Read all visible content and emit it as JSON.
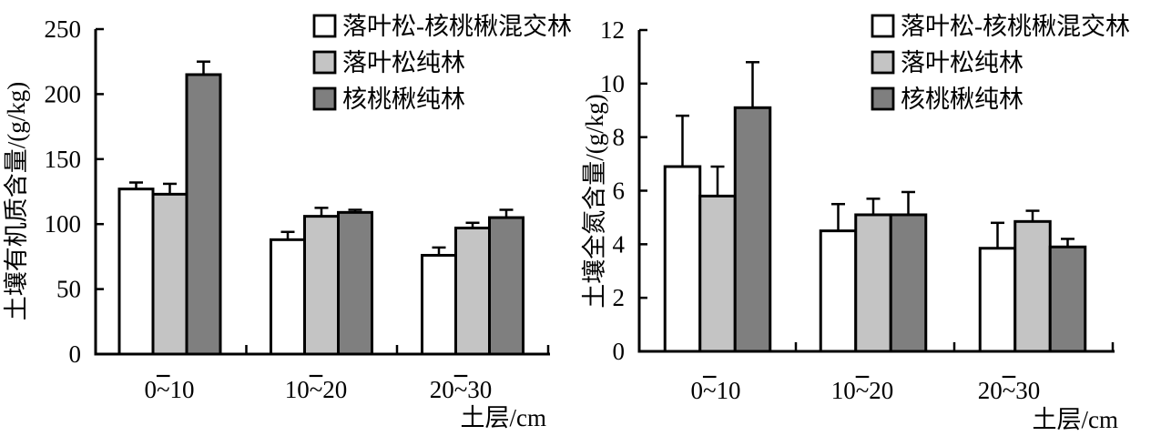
{
  "figure": {
    "background": "#ffffff",
    "outline_color": "#000000",
    "text_color": "#000000"
  },
  "legend": {
    "items": [
      {
        "label": "落叶松-核桃楸混交林",
        "fill": "#ffffff"
      },
      {
        "label": "落叶松纯林",
        "fill": "#c4c4c4"
      },
      {
        "label": "核桃楸纯林",
        "fill": "#7f7f7f"
      }
    ]
  },
  "chart_data": [
    {
      "type": "bar",
      "title": "",
      "ylabel": "土壤有机质含量/(g/kg)",
      "xlabel": "土层/cm",
      "categories": [
        "0~10",
        "10~20",
        "20~30"
      ],
      "yticks": [
        0,
        50,
        100,
        150,
        200,
        250
      ],
      "ylim": [
        0,
        250
      ],
      "grid": false,
      "legend_position": "top-right",
      "series": [
        {
          "name": "落叶松-核桃楸混交林",
          "fill": "#ffffff",
          "values": [
            127,
            88,
            76
          ],
          "errors": [
            5,
            6,
            6
          ]
        },
        {
          "name": "落叶松纯林",
          "fill": "#c4c4c4",
          "values": [
            123,
            106,
            97
          ],
          "errors": [
            8,
            6.5,
            4
          ]
        },
        {
          "name": "核桃楸纯林",
          "fill": "#7f7f7f",
          "values": [
            215,
            109,
            105
          ],
          "errors": [
            10,
            2,
            6
          ]
        }
      ]
    },
    {
      "type": "bar",
      "title": "",
      "ylabel": "土壤全氮含量/(g/kg)",
      "xlabel": "土层/cm",
      "categories": [
        "0~10",
        "10~20",
        "20~30"
      ],
      "yticks": [
        0,
        2,
        4,
        6,
        8,
        10,
        12
      ],
      "ylim": [
        0,
        12
      ],
      "grid": false,
      "legend_position": "top-right",
      "series": [
        {
          "name": "落叶松-核桃楸混交林",
          "fill": "#ffffff",
          "values": [
            6.9,
            4.5,
            3.85
          ],
          "errors": [
            1.9,
            1.0,
            0.95
          ]
        },
        {
          "name": "落叶松纯林",
          "fill": "#c4c4c4",
          "values": [
            5.8,
            5.1,
            4.85
          ],
          "errors": [
            1.1,
            0.6,
            0.4
          ]
        },
        {
          "name": "核桃楸纯林",
          "fill": "#7f7f7f",
          "values": [
            9.1,
            5.1,
            3.9
          ],
          "errors": [
            1.7,
            0.85,
            0.3
          ]
        }
      ]
    }
  ]
}
